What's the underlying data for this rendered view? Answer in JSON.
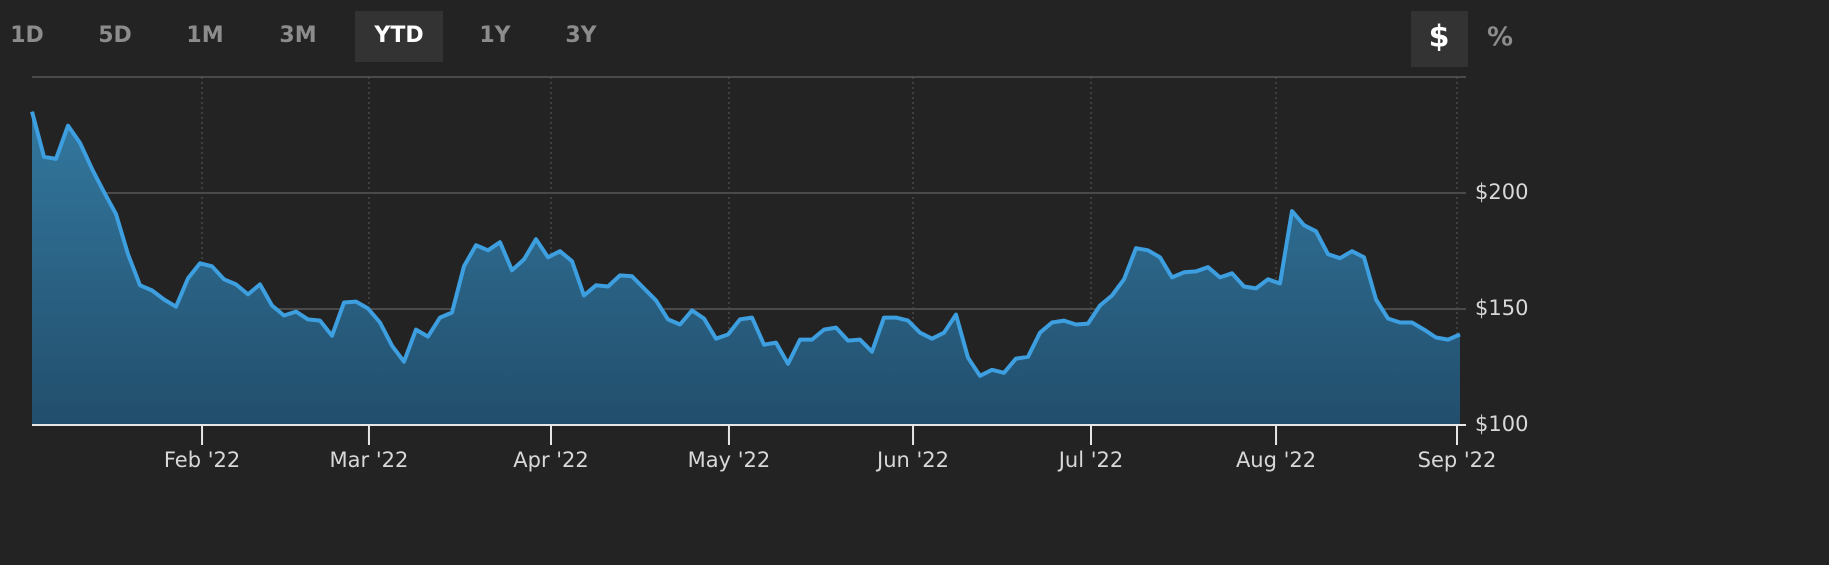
{
  "tabs": {
    "items": [
      "1D",
      "5D",
      "1M",
      "3M",
      "YTD",
      "1Y",
      "3Y"
    ],
    "active": 4
  },
  "units": {
    "items": [
      "$",
      "%"
    ],
    "active": 0
  },
  "chart_data": {
    "type": "area",
    "color": "#3d9fe0",
    "values": [
      235.1,
      215.6,
      214.7,
      229.0,
      221.6,
      210.4,
      200.4,
      190.9,
      173.6,
      160.2,
      158.0,
      154.1,
      151.0,
      163.2,
      169.7,
      168.4,
      162.8,
      160.6,
      156.3,
      160.6,
      151.5,
      147.2,
      148.9,
      145.5,
      145.0,
      138.5,
      152.8,
      153.2,
      150.2,
      144.2,
      134.2,
      127.3,
      141.1,
      138.1,
      146.3,
      148.5,
      168.4,
      177.5,
      175.3,
      178.8,
      166.7,
      171.4,
      180.1,
      172.3,
      174.9,
      170.6,
      155.8,
      160.2,
      159.7,
      164.5,
      164.1,
      158.9,
      153.7,
      145.5,
      143.3,
      149.4,
      145.9,
      137.2,
      139.0,
      145.5,
      146.3,
      134.6,
      135.5,
      126.4,
      136.8,
      136.8,
      141.1,
      142.0,
      136.4,
      136.8,
      131.6,
      146.3,
      146.3,
      145.0,
      139.8,
      137.2,
      139.8,
      147.6,
      129.0,
      121.2,
      123.8,
      122.5,
      128.6,
      129.4,
      139.8,
      144.2,
      145.0,
      143.3,
      143.7,
      151.5,
      155.8,
      162.8,
      176.2,
      175.3,
      172.3,
      163.6,
      165.8,
      166.2,
      168.0,
      163.6,
      165.4,
      159.7,
      158.9,
      162.8,
      161.0,
      192.2,
      186.1,
      183.5,
      173.6,
      171.9,
      174.9,
      172.3,
      154.1,
      145.9,
      144.2,
      144.2,
      141.1,
      137.7,
      136.8,
      139.0
    ],
    "xlim": [
      0,
      119
    ],
    "xticks": [
      {
        "value": 14.17,
        "label": "Feb '22"
      },
      {
        "value": 28.08,
        "label": "Mar '22"
      },
      {
        "value": 43.25,
        "label": "Apr '22"
      },
      {
        "value": 58.08,
        "label": "May '22"
      },
      {
        "value": 73.42,
        "label": "Jun '22"
      },
      {
        "value": 88.25,
        "label": "Jul '22"
      },
      {
        "value": 103.67,
        "label": "Aug '22"
      },
      {
        "value": 118.75,
        "label": "Sep '22"
      }
    ],
    "ylim": [
      100,
      250
    ],
    "yticks": [
      {
        "value": 100,
        "label": "$100"
      },
      {
        "value": 150,
        "label": "$150"
      },
      {
        "value": 200,
        "label": "$200"
      }
    ],
    "grid": true
  }
}
